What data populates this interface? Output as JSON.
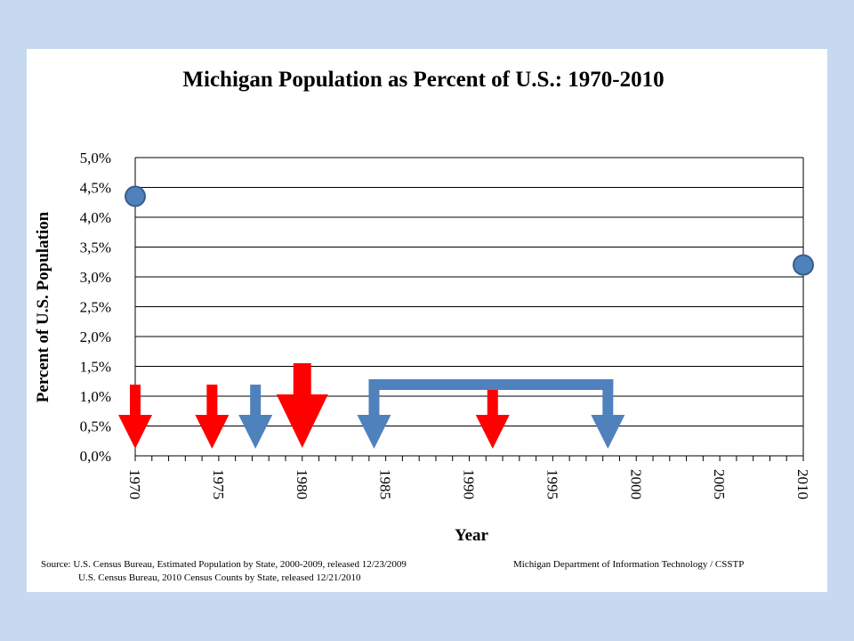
{
  "chart_data": {
    "type": "scatter",
    "title": "Michigan Population as Percent of U.S.: 1970-2010",
    "xlabel": "Year",
    "ylabel": "Percent of U.S. Population",
    "xlim": [
      1970,
      2010
    ],
    "ylim": [
      0,
      5
    ],
    "x_ticks": [
      "1970",
      "1975",
      "1980",
      "1985",
      "1990",
      "1995",
      "2000",
      "2005",
      "2010"
    ],
    "y_ticks": [
      "0,0%",
      "0,5%",
      "1,0%",
      "1,5%",
      "2,0%",
      "2,5%",
      "3,0%",
      "3,5%",
      "4,0%",
      "4,5%",
      "5,0%"
    ],
    "grid": "horizontal",
    "series": [
      {
        "points": [
          {
            "x": 1970,
            "y": 4.35
          },
          {
            "x": 2010,
            "y": 3.2
          }
        ],
        "color": "#4f81bd"
      }
    ],
    "annotations": {
      "red_arrows": [
        {
          "x": 1970,
          "size": "normal",
          "color": "#ff0000"
        },
        {
          "x": 1974.6,
          "size": "normal",
          "color": "#ff0000"
        },
        {
          "x": 1980,
          "size": "large",
          "color": "#ff0000"
        },
        {
          "x": 1991.4,
          "size": "normal",
          "color": "#ff0000"
        }
      ],
      "blue_arrows": [
        {
          "x": 1977.2,
          "color": "#4f81bd"
        }
      ],
      "blue_bracket": {
        "x_start": 1984.3,
        "x_end": 1998.3,
        "color": "#4f81bd"
      }
    }
  },
  "source": {
    "line1": "Source:  U.S.  Census Bureau, Estimated Population by State, 2000-2009, released 12/23/2009",
    "line2": "U.S.  Census Bureau, 2010 Census  Counts by State, released 12/21/2010",
    "credit": "Michigan Department of Information Technology / CSSTP"
  }
}
